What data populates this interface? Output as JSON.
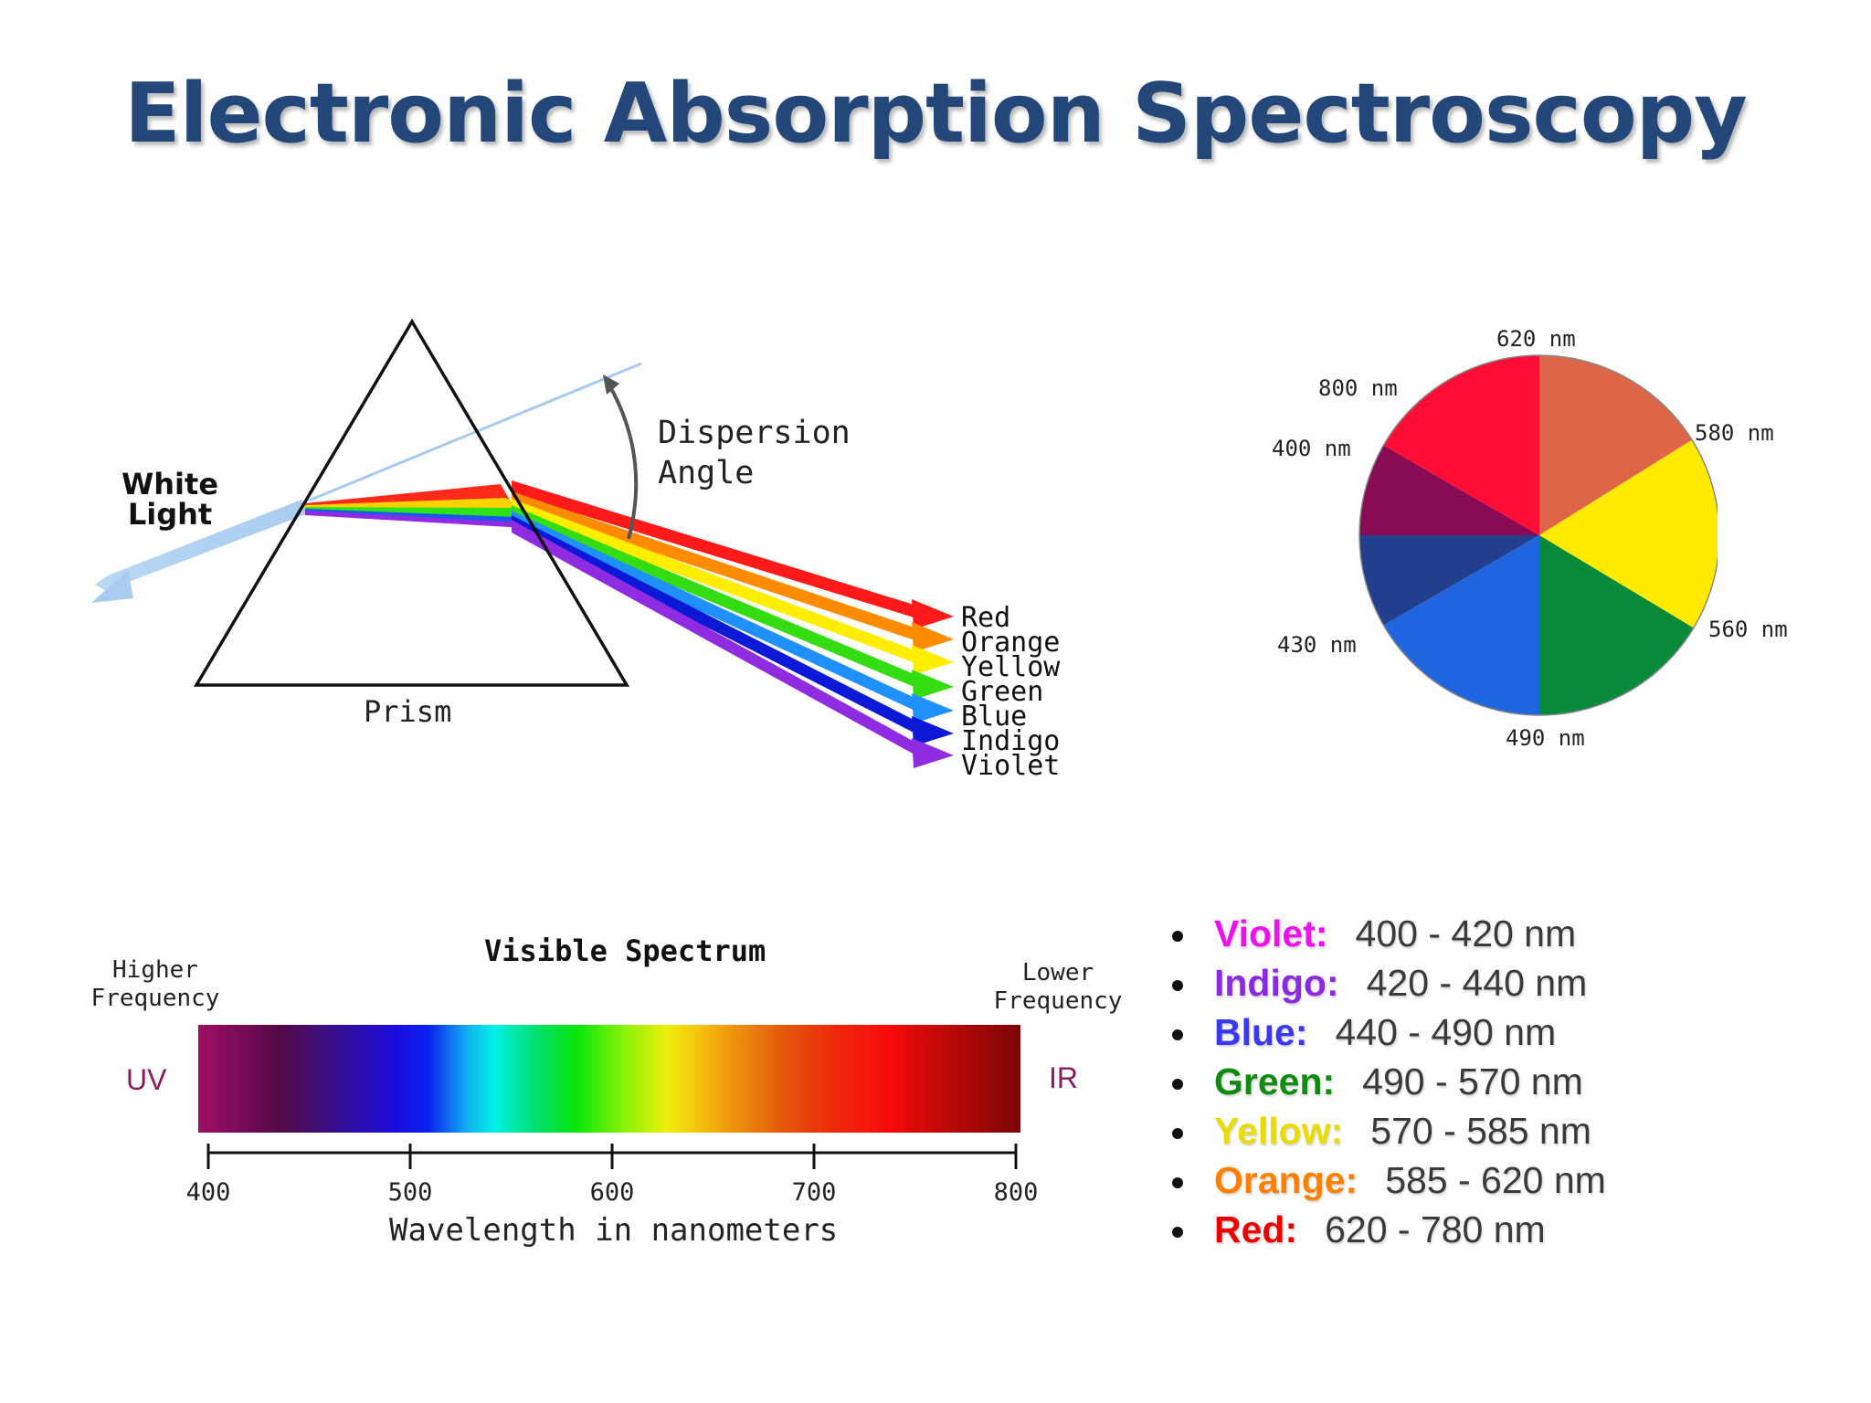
{
  "title": "Electronic Absorption Spectroscopy",
  "prism": {
    "white_light": [
      "White",
      "Light"
    ],
    "dispersion": [
      "Dispersion",
      "Angle"
    ],
    "prism_label": "Prism",
    "beams": [
      {
        "name": "Red",
        "color": "#ff1a1a"
      },
      {
        "name": "Orange",
        "color": "#ff8c00"
      },
      {
        "name": "Yellow",
        "color": "#ffee00"
      },
      {
        "name": "Green",
        "color": "#33dd11"
      },
      {
        "name": "Blue",
        "color": "#1e90ff"
      },
      {
        "name": "Indigo",
        "color": "#0b18d6"
      },
      {
        "name": "Violet",
        "color": "#8f2be0"
      }
    ]
  },
  "color_wheel": {
    "labels": [
      "620 nm",
      "580 nm",
      "560 nm",
      "490 nm",
      "430 nm",
      "400 nm",
      "800 nm"
    ],
    "segments": [
      {
        "name": "orange-red",
        "color": "#dd6548"
      },
      {
        "name": "yellow",
        "color": "#ffea00"
      },
      {
        "name": "green",
        "color": "#078a3a"
      },
      {
        "name": "blue",
        "color": "#2065e0"
      },
      {
        "name": "indigo",
        "color": "#213f8c"
      },
      {
        "name": "violet",
        "color": "#880b54"
      },
      {
        "name": "red",
        "color": "#ff0d35"
      }
    ]
  },
  "spectrum": {
    "title": "Visible Spectrum",
    "higher_frequency": [
      "Higher",
      "Frequency"
    ],
    "lower_frequency": [
      "Lower",
      "Frequency"
    ],
    "uv": "UV",
    "ir": "IR",
    "axis": {
      "min": 400,
      "max": 800,
      "ticks": [
        400,
        500,
        600,
        700,
        800
      ],
      "tick_labels": [
        "400",
        "500",
        "600",
        "700",
        "800"
      ],
      "title": "Wavelength in nanometers"
    }
  },
  "color_ranges": [
    {
      "name": "Violet:",
      "range": "400 - 420 nm",
      "color": "#ee11ee"
    },
    {
      "name": "Indigo:",
      "range": "420 - 440 nm",
      "color": "#8a2be2"
    },
    {
      "name": "Blue:",
      "range": "440 - 490 nm",
      "color": "#3939f2"
    },
    {
      "name": "Green:",
      "range": "490 - 570 nm",
      "color": "#108a10"
    },
    {
      "name": "Yellow:",
      "range": "570 - 585 nm",
      "color": "#e8dc00"
    },
    {
      "name": "Orange:",
      "range": "585 - 620 nm",
      "color": "#ff8000"
    },
    {
      "name": "Red:",
      "range": "620 - 780 nm",
      "color": "#ee0000"
    }
  ]
}
